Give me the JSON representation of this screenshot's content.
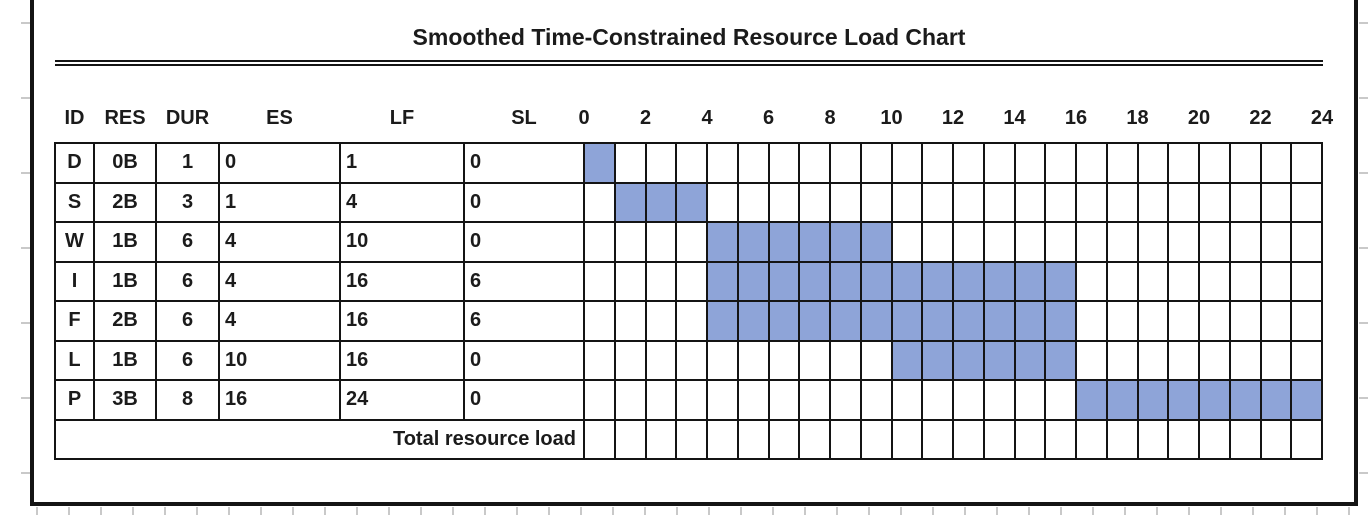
{
  "title": "Smoothed Time-Constrained Resource Load Chart",
  "table": {
    "headers": [
      "ID",
      "RES",
      "DUR",
      "ES",
      "LF",
      "SL"
    ],
    "footer_label": "Total resource load",
    "rows": [
      {
        "id": "D",
        "res": "0B",
        "dur": "1",
        "es": "0",
        "lf": "1",
        "sl": "0",
        "bar": [
          0,
          1
        ]
      },
      {
        "id": "S",
        "res": "2B",
        "dur": "3",
        "es": "1",
        "lf": "4",
        "sl": "0",
        "bar": [
          1,
          4
        ]
      },
      {
        "id": "W",
        "res": "1B",
        "dur": "6",
        "es": "4",
        "lf": "10",
        "sl": "0",
        "bar": [
          4,
          10
        ]
      },
      {
        "id": "I",
        "res": "1B",
        "dur": "6",
        "es": "4",
        "lf": "16",
        "sl": "6",
        "bar": [
          4,
          16
        ]
      },
      {
        "id": "F",
        "res": "2B",
        "dur": "6",
        "es": "4",
        "lf": "16",
        "sl": "6",
        "bar": [
          4,
          16
        ]
      },
      {
        "id": "L",
        "res": "1B",
        "dur": "6",
        "es": "10",
        "lf": "16",
        "sl": "0",
        "bar": [
          10,
          16
        ]
      },
      {
        "id": "P",
        "res": "3B",
        "dur": "8",
        "es": "16",
        "lf": "24",
        "sl": "0",
        "bar": [
          16,
          24
        ]
      }
    ]
  },
  "timeline": {
    "min": 0,
    "max": 24,
    "tick_step": 2,
    "tick_labels": [
      "0",
      "2",
      "4",
      "6",
      "8",
      "10",
      "12",
      "14",
      "16",
      "18",
      "20",
      "22",
      "24"
    ]
  },
  "colors": {
    "bar_fill": "#8EA4D8",
    "grid_line": "#141414",
    "text": "#1b1b1b",
    "frame": "#141414",
    "background": "#ffffff",
    "gridline_stub": "#c9c9c9"
  },
  "chart_data": {
    "type": "bar",
    "subtype": "gantt-resource-load",
    "title": "Smoothed Time-Constrained Resource Load Chart",
    "xlabel": "",
    "ylabel": "",
    "x_axis": {
      "min": 0,
      "max": 24,
      "ticks": [
        0,
        2,
        4,
        6,
        8,
        10,
        12,
        14,
        16,
        18,
        20,
        22,
        24
      ]
    },
    "grid": true,
    "legend": false,
    "columns": [
      "ID",
      "RES",
      "DUR",
      "ES",
      "LF",
      "SL"
    ],
    "tasks": [
      {
        "ID": "D",
        "RES": "0B",
        "DUR": 1,
        "ES": 0,
        "LF": 1,
        "SL": 0,
        "bar_start": 0,
        "bar_end": 1
      },
      {
        "ID": "S",
        "RES": "2B",
        "DUR": 3,
        "ES": 1,
        "LF": 4,
        "SL": 0,
        "bar_start": 1,
        "bar_end": 4
      },
      {
        "ID": "W",
        "RES": "1B",
        "DUR": 6,
        "ES": 4,
        "LF": 10,
        "SL": 0,
        "bar_start": 4,
        "bar_end": 10
      },
      {
        "ID": "I",
        "RES": "1B",
        "DUR": 6,
        "ES": 4,
        "LF": 16,
        "SL": 6,
        "bar_start": 4,
        "bar_end": 16
      },
      {
        "ID": "F",
        "RES": "2B",
        "DUR": 6,
        "ES": 4,
        "LF": 16,
        "SL": 6,
        "bar_start": 4,
        "bar_end": 16
      },
      {
        "ID": "L",
        "RES": "1B",
        "DUR": 6,
        "ES": 10,
        "LF": 16,
        "SL": 0,
        "bar_start": 10,
        "bar_end": 16
      },
      {
        "ID": "P",
        "RES": "3B",
        "DUR": 8,
        "ES": 16,
        "LF": 24,
        "SL": 0,
        "bar_start": 16,
        "bar_end": 24
      }
    ],
    "footer_row": "Total resource load"
  }
}
